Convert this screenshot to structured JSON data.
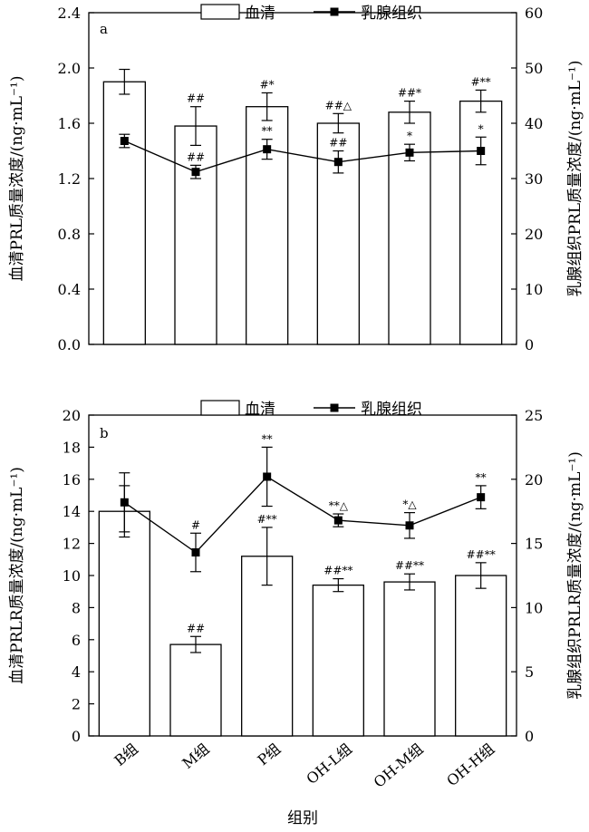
{
  "chart_data": [
    {
      "type": "bar",
      "panel_label": "a",
      "legend": {
        "bar_label": "血清",
        "line_label": "乳腺组织",
        "position": "top-center"
      },
      "categories": [
        "B组",
        "M组",
        "P组",
        "OH-L组",
        "OH-M组",
        "OH-H组"
      ],
      "ylabel": "血清PRL质量浓度/(ng·mL⁻¹)",
      "y2label": "乳腺组织PRL质量浓度/(ng·mL⁻¹)",
      "ylim": [
        0,
        2.4
      ],
      "y2lim": [
        0,
        60
      ],
      "yticks": [
        "0.0",
        "0.4",
        "0.8",
        "1.2",
        "1.6",
        "2.0",
        "2.4"
      ],
      "y2ticks": [
        "0",
        "10",
        "20",
        "30",
        "40",
        "50",
        "60"
      ],
      "series": [
        {
          "name": "血清",
          "kind": "bar",
          "axis": "left",
          "values": [
            1.9,
            1.58,
            1.72,
            1.6,
            1.68,
            1.76
          ],
          "errors": [
            0.09,
            0.14,
            0.1,
            0.07,
            0.08,
            0.08
          ],
          "annotations": [
            "",
            "##",
            "#*",
            "##△",
            "##*",
            "#**"
          ]
        },
        {
          "name": "乳腺组织",
          "kind": "line",
          "axis": "right",
          "values": [
            36.8,
            31.2,
            35.3,
            33.0,
            34.7,
            35.0
          ],
          "errors": [
            1.2,
            1.2,
            1.8,
            2.0,
            1.5,
            2.5
          ],
          "annotations": [
            "",
            "##",
            "**",
            "##",
            "*",
            "*"
          ]
        }
      ]
    },
    {
      "type": "bar",
      "panel_label": "b",
      "legend": {
        "bar_label": "血清",
        "line_label": "乳腺组织",
        "position": "top-center"
      },
      "categories": [
        "B组",
        "M组",
        "P组",
        "OH-L组",
        "OH-M组",
        "OH-H组"
      ],
      "xlabel": "组别",
      "ylabel": "血清PRLR质量浓度/(ng·mL⁻¹)",
      "y2label": "乳腺组织PRLR质量浓度/(ng·mL⁻¹)",
      "ylim": [
        0,
        20
      ],
      "y2lim": [
        0,
        25
      ],
      "yticks": [
        "0",
        "2",
        "4",
        "6",
        "8",
        "10",
        "12",
        "14",
        "16",
        "18",
        "20"
      ],
      "y2ticks": [
        "0",
        "5",
        "10",
        "15",
        "20",
        "25"
      ],
      "series": [
        {
          "name": "血清",
          "kind": "bar",
          "axis": "left",
          "values": [
            14.0,
            5.7,
            11.2,
            9.4,
            9.6,
            10.0
          ],
          "errors": [
            1.6,
            0.5,
            1.8,
            0.4,
            0.5,
            0.8
          ],
          "annotations": [
            "",
            "##",
            "#**",
            "##**",
            "##**",
            "##**"
          ]
        },
        {
          "name": "乳腺组织",
          "kind": "line",
          "axis": "right",
          "values": [
            18.2,
            14.3,
            20.2,
            16.8,
            16.4,
            18.6
          ],
          "errors": [
            2.3,
            1.5,
            2.3,
            0.5,
            1.0,
            0.9
          ],
          "annotations": [
            "",
            "#",
            "**",
            "**△",
            "*△",
            "**"
          ]
        }
      ]
    }
  ]
}
